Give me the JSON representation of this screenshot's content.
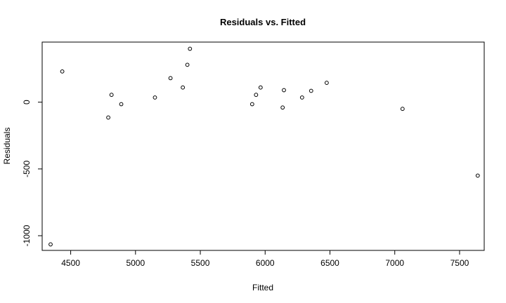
{
  "chart_data": {
    "type": "scatter",
    "title": "Residuals vs. Fitted",
    "xlabel": "Fitted",
    "ylabel": "Residuals",
    "xlim": [
      4280,
      7690
    ],
    "ylim": [
      -1110,
      450
    ],
    "xticks": [
      4500,
      5000,
      5500,
      6000,
      6500,
      7000,
      7500
    ],
    "xtick_labels": [
      "4500",
      "5000",
      "5500",
      "6000",
      "6500",
      "7000",
      "7500"
    ],
    "yticks": [
      -1000,
      -500,
      0
    ],
    "ytick_labels": [
      "-1000",
      "-500",
      "0"
    ],
    "grid": false,
    "legend": "none",
    "points": [
      {
        "x": 4345,
        "y": -1065
      },
      {
        "x": 4435,
        "y": 230
      },
      {
        "x": 4790,
        "y": -115
      },
      {
        "x": 4815,
        "y": 55
      },
      {
        "x": 4890,
        "y": -15
      },
      {
        "x": 5150,
        "y": 35
      },
      {
        "x": 5270,
        "y": 180
      },
      {
        "x": 5365,
        "y": 110
      },
      {
        "x": 5400,
        "y": 280
      },
      {
        "x": 5420,
        "y": 400
      },
      {
        "x": 5900,
        "y": -15
      },
      {
        "x": 5930,
        "y": 55
      },
      {
        "x": 5965,
        "y": 110
      },
      {
        "x": 6135,
        "y": -40
      },
      {
        "x": 6145,
        "y": 90
      },
      {
        "x": 6285,
        "y": 35
      },
      {
        "x": 6355,
        "y": 85
      },
      {
        "x": 6475,
        "y": 145
      },
      {
        "x": 7060,
        "y": -50
      },
      {
        "x": 7640,
        "y": -550
      }
    ]
  }
}
